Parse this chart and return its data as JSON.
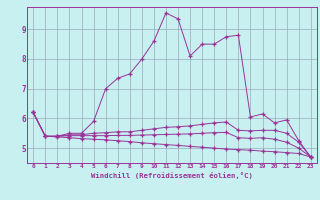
{
  "xlabel": "Windchill (Refroidissement éolien,°C)",
  "bg_color": "#c8f0f0",
  "line_color": "#993399",
  "grid_color": "#99aabb",
  "x_ticks": [
    0,
    1,
    2,
    3,
    4,
    5,
    6,
    7,
    8,
    9,
    10,
    11,
    12,
    13,
    14,
    15,
    16,
    17,
    18,
    19,
    20,
    21,
    22,
    23
  ],
  "y_ticks": [
    5,
    6,
    7,
    8,
    9
  ],
  "xlim": [
    -0.5,
    23.5
  ],
  "ylim": [
    4.5,
    9.75
  ],
  "line_main": [
    6.2,
    5.4,
    5.4,
    5.5,
    5.5,
    5.9,
    7.0,
    7.35,
    7.5,
    8.0,
    8.6,
    9.55,
    9.35,
    8.1,
    8.5,
    8.5,
    8.75,
    8.8,
    6.05,
    6.15,
    5.85,
    5.95,
    5.25,
    4.7
  ],
  "line_mid1": [
    6.2,
    5.4,
    5.4,
    5.45,
    5.45,
    5.5,
    5.52,
    5.55,
    5.55,
    5.6,
    5.65,
    5.7,
    5.72,
    5.75,
    5.8,
    5.85,
    5.88,
    5.6,
    5.58,
    5.6,
    5.6,
    5.5,
    5.2,
    4.7
  ],
  "line_mid2": [
    6.2,
    5.4,
    5.4,
    5.42,
    5.42,
    5.42,
    5.42,
    5.43,
    5.43,
    5.44,
    5.45,
    5.46,
    5.47,
    5.48,
    5.5,
    5.52,
    5.53,
    5.35,
    5.33,
    5.35,
    5.3,
    5.2,
    5.0,
    4.7
  ],
  "line_low": [
    6.2,
    5.4,
    5.38,
    5.35,
    5.32,
    5.3,
    5.28,
    5.25,
    5.22,
    5.18,
    5.15,
    5.12,
    5.09,
    5.06,
    5.03,
    5.0,
    4.97,
    4.95,
    4.93,
    4.9,
    4.88,
    4.85,
    4.82,
    4.7
  ]
}
